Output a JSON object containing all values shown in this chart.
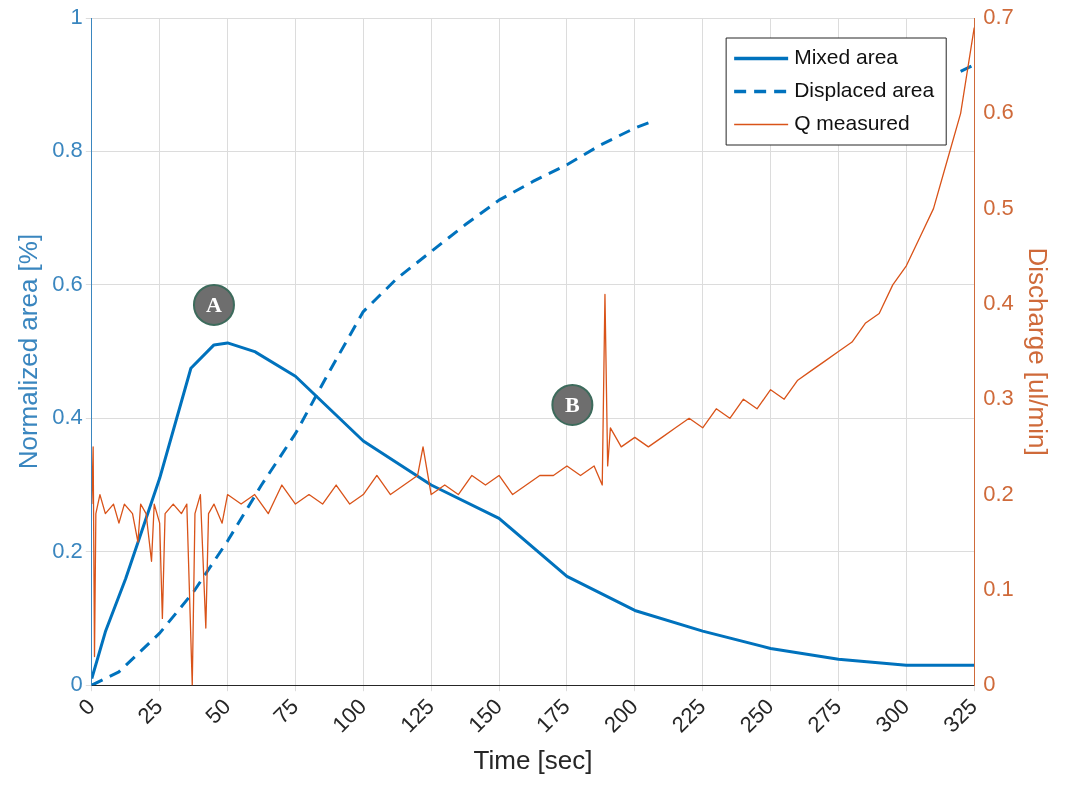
{
  "chart_data": {
    "type": "line",
    "xlabel": "Time [sec]",
    "ylabel": "Normalized area [%]",
    "y2label": "Discharge [ul/min]",
    "xlim": [
      0,
      325
    ],
    "xticks": [
      0,
      25,
      50,
      75,
      100,
      125,
      150,
      175,
      200,
      225,
      250,
      275,
      300,
      325
    ],
    "ylim": [
      0,
      1
    ],
    "yticks": [
      0,
      0.2,
      0.4,
      0.6,
      0.8,
      1
    ],
    "y2lim": [
      0,
      0.7
    ],
    "y2ticks": [
      0,
      0.1,
      0.2,
      0.3,
      0.4,
      0.5,
      0.6,
      0.7
    ],
    "grid": true,
    "legend": "top right",
    "marker": "none",
    "annotations": [
      {
        "text": "A",
        "x": 45,
        "y": 0.57
      },
      {
        "text": "B",
        "x": 177,
        "y": 0.42
      }
    ],
    "series": [
      {
        "name": "Mixed area",
        "color": "#0072bd",
        "line_style": "solid",
        "x": [
          0,
          5,
          12.5,
          25,
          36.5,
          45,
          50,
          60,
          75,
          100,
          125,
          150,
          175,
          200,
          225,
          250,
          275,
          300,
          325
        ],
        "values": [
          0.01,
          0.08,
          0.16,
          0.31,
          0.475,
          0.51,
          0.513,
          0.5,
          0.463,
          0.366,
          0.3,
          0.25,
          0.163,
          0.112,
          0.081,
          0.055,
          0.039,
          0.03,
          0.03
        ]
      },
      {
        "name": "Displaced area",
        "color": "#0072bd",
        "line_style": "dashed",
        "x": [
          0,
          10,
          25,
          37.5,
          50,
          62.5,
          75,
          87.5,
          100,
          112.5,
          125,
          137.5,
          150,
          162.5,
          175,
          187.5,
          200,
          207,
          212,
          318,
          320,
          325
        ],
        "values": [
          0,
          0.02,
          0.078,
          0.14,
          0.216,
          0.3,
          0.377,
          0.47,
          0.56,
          0.61,
          0.65,
          0.69,
          0.727,
          0.755,
          0.78,
          0.81,
          0.835,
          0.846,
          null,
          null,
          0.92,
          0.93
        ]
      },
      {
        "name": "Q measured",
        "color": "#d95319",
        "line_style": "solid",
        "axis": "y2",
        "x": [
          0,
          0.5,
          1,
          1.5,
          3,
          5,
          8,
          10,
          12,
          15,
          17,
          18,
          20,
          22,
          23,
          25,
          26,
          27,
          30,
          33,
          35,
          37,
          38,
          40,
          42,
          43,
          45,
          48,
          50,
          55,
          60,
          65,
          70,
          75,
          80,
          85,
          90,
          95,
          100,
          105,
          110,
          115,
          120,
          122,
          125,
          130,
          135,
          140,
          145,
          150,
          155,
          160,
          165,
          170,
          175,
          180,
          185,
          188,
          189,
          190,
          191,
          195,
          200,
          205,
          210,
          215,
          220,
          225,
          230,
          235,
          240,
          245,
          250,
          255,
          260,
          265,
          270,
          275,
          280,
          285,
          290,
          295,
          300,
          305,
          310,
          315,
          320,
          325
        ],
        "values": [
          0.19,
          0.25,
          0.03,
          0.18,
          0.2,
          0.18,
          0.19,
          0.17,
          0.19,
          0.18,
          0.15,
          0.19,
          0.18,
          0.13,
          0.19,
          0.17,
          0.07,
          0.18,
          0.19,
          0.18,
          0.19,
          0,
          0.18,
          0.2,
          0.06,
          0.18,
          0.19,
          0.17,
          0.2,
          0.19,
          0.2,
          0.18,
          0.21,
          0.19,
          0.2,
          0.19,
          0.21,
          0.19,
          0.2,
          0.22,
          0.2,
          0.21,
          0.22,
          0.25,
          0.2,
          0.21,
          0.2,
          0.22,
          0.21,
          0.22,
          0.2,
          0.21,
          0.22,
          0.22,
          0.23,
          0.22,
          0.23,
          0.21,
          0.41,
          0.23,
          0.27,
          0.25,
          0.26,
          0.25,
          0.26,
          0.27,
          0.28,
          0.27,
          0.29,
          0.28,
          0.3,
          0.29,
          0.31,
          0.3,
          0.32,
          0.33,
          0.34,
          0.35,
          0.36,
          0.38,
          0.39,
          0.42,
          0.44,
          0.47,
          0.5,
          0.55,
          0.6,
          0.69
        ]
      }
    ]
  }
}
